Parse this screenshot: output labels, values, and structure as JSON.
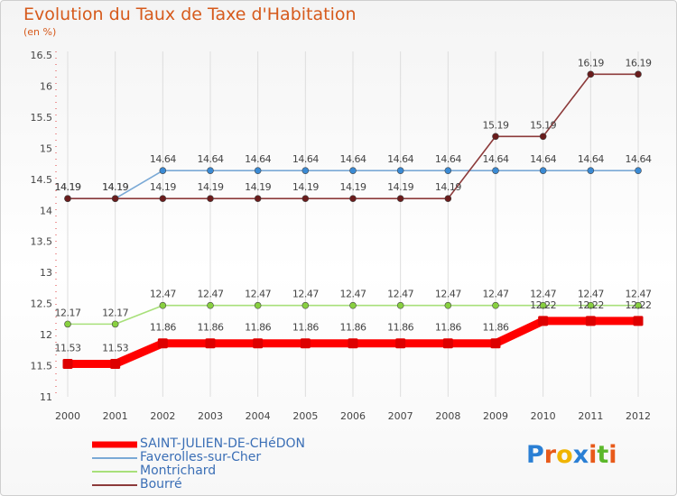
{
  "header": {
    "title": "Evolution du Taux de Taxe d'Habitation",
    "unit": "(en %)"
  },
  "chart_data": {
    "type": "line",
    "title": "Evolution du Taux de Taxe d'Habitation",
    "ylabel": "(en %)",
    "xlabel": "",
    "ylim": [
      11,
      16.5
    ],
    "y_ticks": [
      "11",
      "11.5",
      "12",
      "12.5",
      "13",
      "13.5",
      "14",
      "14.5",
      "15",
      "15.5",
      "16",
      "16.5"
    ],
    "categories": [
      "2000",
      "2001",
      "2002",
      "2003",
      "2004",
      "2005",
      "2006",
      "2007",
      "2008",
      "2009",
      "2010",
      "2011",
      "2012"
    ],
    "series": [
      {
        "name": "SAINT-JULIEN-DE-CHéDON",
        "color": "#ff0000",
        "marker": "#ee1111",
        "values": [
          11.53,
          11.53,
          11.86,
          11.86,
          11.86,
          11.86,
          11.86,
          11.86,
          11.86,
          11.86,
          12.22,
          12.22,
          12.22
        ],
        "labels": [
          "11.53",
          "11.53",
          "11.86",
          "11.86",
          "11.86",
          "11.86",
          "11.86",
          "11.86",
          "11.86",
          "11.86",
          "12.22",
          "12.22",
          "12.22"
        ]
      },
      {
        "name": "Faverolles-sur-Cher",
        "color": "#7aa9d6",
        "marker": "#3a8ad4",
        "values": [
          14.19,
          14.19,
          14.64,
          14.64,
          14.64,
          14.64,
          14.64,
          14.64,
          14.64,
          14.64,
          14.64,
          14.64,
          14.64
        ],
        "labels": [
          "14.19",
          "14.19",
          "14.64",
          "14.64",
          "14.64",
          "14.64",
          "14.64",
          "14.64",
          "14.64",
          "14.64",
          "14.64",
          "14.64",
          "14.64"
        ]
      },
      {
        "name": "Montrichard",
        "color": "#a8e07a",
        "marker": "#88d040",
        "values": [
          12.17,
          12.17,
          12.47,
          12.47,
          12.47,
          12.47,
          12.47,
          12.47,
          12.47,
          12.47,
          12.47,
          12.47,
          12.47
        ],
        "labels": [
          "12.17",
          "12.17",
          "12.47",
          "12.47",
          "12.47",
          "12.47",
          "12.47",
          "12.47",
          "12.47",
          "12.47",
          "12.47",
          "12.47",
          "12.47"
        ]
      },
      {
        "name": "Bourré",
        "color": "#8c3a3a",
        "marker": "#6a1c1c",
        "values": [
          14.19,
          14.19,
          14.19,
          14.19,
          14.19,
          14.19,
          14.19,
          14.19,
          14.19,
          15.19,
          15.19,
          16.19,
          16.19
        ],
        "labels": [
          "14.19",
          "14.19",
          "14.19",
          "14.19",
          "14.19",
          "14.19",
          "14.19",
          "14.19",
          "14.19",
          "15.19",
          "15.19",
          "16.19",
          "16.19"
        ]
      }
    ]
  },
  "legend": {
    "items": [
      {
        "label": "SAINT-JULIEN-DE-CHéDON",
        "color": "#ff0000"
      },
      {
        "label": "Faverolles-sur-Cher",
        "color": "#7aa9d6"
      },
      {
        "label": "Montrichard",
        "color": "#a8e07a"
      },
      {
        "label": "Bourré",
        "color": "#8c3a3a"
      }
    ]
  },
  "logo": {
    "letters": [
      "P",
      "r",
      "o",
      "x",
      "i",
      "t",
      "i"
    ],
    "colors": [
      "#2a7fd4",
      "#e85a1a",
      "#f0b400",
      "#2a7fd4",
      "#e85a1a",
      "#5bb82a",
      "#e85a1a"
    ]
  }
}
